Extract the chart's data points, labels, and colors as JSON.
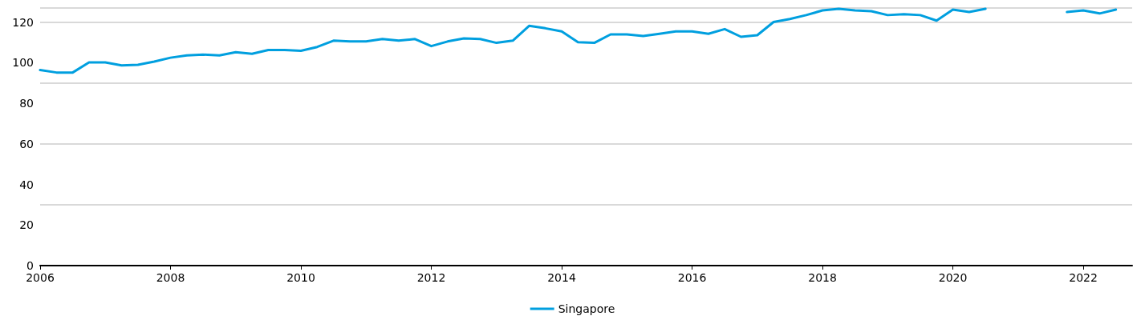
{
  "chart_data": {
    "type": "line",
    "x": [
      2006,
      2006.25,
      2006.5,
      2006.75,
      2007,
      2007.25,
      2007.5,
      2007.75,
      2008,
      2008.25,
      2008.5,
      2008.75,
      2009,
      2009.25,
      2009.5,
      2009.75,
      2010,
      2010.25,
      2010.5,
      2010.75,
      2011,
      2011.25,
      2011.5,
      2011.75,
      2012,
      2012.25,
      2012.5,
      2012.75,
      2013,
      2013.25,
      2013.5,
      2013.75,
      2014,
      2014.25,
      2014.5,
      2014.75,
      2015,
      2015.25,
      2015.5,
      2015.75,
      2016,
      2016.25,
      2016.5,
      2016.75,
      2017,
      2017.25,
      2017.5,
      2017.75,
      2018,
      2018.25,
      2018.5,
      2018.75,
      2019,
      2019.25,
      2019.5,
      2019.75,
      2020,
      2020.25,
      2020.5,
      2020.75,
      2021,
      2021.25,
      2021.5,
      2021.75,
      2022,
      2022.25,
      2022.5
    ],
    "series": [
      {
        "name": "Singapore",
        "color": "#009fdf",
        "values": [
          96.4,
          95.2,
          95.2,
          100.2,
          100.2,
          98.7,
          99.0,
          100.6,
          102.5,
          103.6,
          104.0,
          103.6,
          105.2,
          104.4,
          106.3,
          106.3,
          105.9,
          107.8,
          110.9,
          110.5,
          110.5,
          111.7,
          110.9,
          111.7,
          108.2,
          110.5,
          112.0,
          111.7,
          109.8,
          110.9,
          118.2,
          117.0,
          115.5,
          110.1,
          109.8,
          114.0,
          114.0,
          113.2,
          114.3,
          115.5,
          115.5,
          114.3,
          116.6,
          112.8,
          113.6,
          120.1,
          121.6,
          123.5,
          125.8,
          126.6,
          125.8,
          125.4,
          123.5,
          123.9,
          123.5,
          120.8,
          126.2,
          125.0,
          126.6,
          null,
          null,
          null,
          null,
          125.0,
          125.8,
          124.3,
          126.2
        ]
      }
    ],
    "xlim": [
      2006,
      2022.75
    ],
    "xticks": [
      2006,
      2008,
      2010,
      2012,
      2014,
      2016,
      2018,
      2020,
      2022
    ],
    "ylim": [
      0,
      127
    ],
    "yticks": [
      0,
      20,
      40,
      60,
      80,
      100,
      120
    ],
    "grid": "y",
    "legend": "bottom",
    "marker": "none",
    "line_style": "solid"
  }
}
